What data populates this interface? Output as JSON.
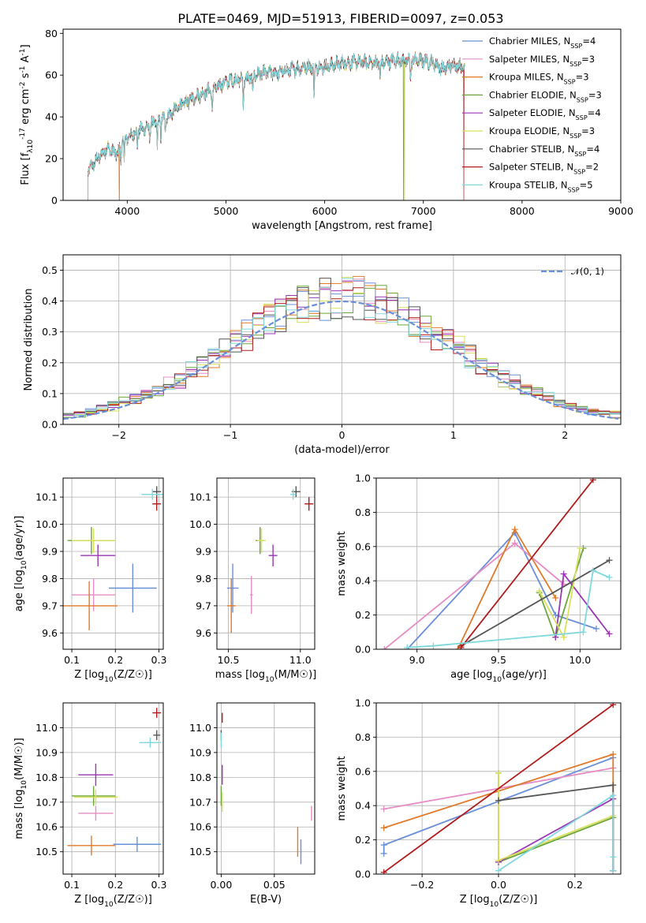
{
  "figure": {
    "title": "PLATE=0469, MJD=51913, FIBERID=0097, z=0.053"
  },
  "colors": {
    "Chabrier MILES": "#6a8fd8",
    "Salpeter MILES": "#e68dc4",
    "Kroupa MILES": "#e07a28",
    "Chabrier ELODIE": "#6ca63a",
    "Salpeter ELODIE": "#9b35b8",
    "Kroupa ELODIE": "#d9e05a",
    "Chabrier STELIB": "#555555",
    "Salpeter STELIB": "#b01c1c",
    "Kroupa STELIB": "#7fd8dc"
  },
  "chart_data": [
    {
      "id": "spectrum",
      "type": "line",
      "xlabel": "wavelength [Angstrom, rest frame]",
      "ylabel": "Flux [f_λ10^-17 erg cm^-2 s^-1 A^-1]",
      "xlim": [
        3350,
        9000
      ],
      "ylim": [
        0,
        82
      ],
      "xticks": [
        4000,
        5000,
        6000,
        7000,
        8000,
        9000
      ],
      "yticks": [
        0,
        20,
        40,
        60,
        80
      ],
      "grid": false,
      "legend_position": "right",
      "x_range_data": [
        3600,
        7420
      ],
      "legend": [
        {
          "name": "Chabrier MILES, N_SSP=4",
          "model": "Chabrier MILES"
        },
        {
          "name": "Salpeter MILES, N_SSP=3",
          "model": "Salpeter MILES"
        },
        {
          "name": "Kroupa MILES, N_SSP=3",
          "model": "Kroupa MILES"
        },
        {
          "name": "Chabrier ELODIE, N_SSP=3",
          "model": "Chabrier ELODIE"
        },
        {
          "name": "Salpeter ELODIE, N_SSP=4",
          "model": "Salpeter ELODIE"
        },
        {
          "name": "Kroupa ELODIE, N_SSP=3",
          "model": "Kroupa ELODIE"
        },
        {
          "name": "Chabrier STELIB, N_SSP=4",
          "model": "Chabrier STELIB"
        },
        {
          "name": "Salpeter STELIB, N_SSP=2",
          "model": "Salpeter STELIB"
        },
        {
          "name": "Kroupa STELIB, N_SSP=5",
          "model": "Kroupa STELIB"
        }
      ],
      "envelope": [
        [
          3600,
          14
        ],
        [
          3700,
          20
        ],
        [
          3800,
          25
        ],
        [
          3900,
          22
        ],
        [
          3950,
          28
        ],
        [
          4000,
          30
        ],
        [
          4100,
          33
        ],
        [
          4200,
          35
        ],
        [
          4300,
          38
        ],
        [
          4400,
          40
        ],
        [
          4500,
          44
        ],
        [
          4600,
          47
        ],
        [
          4700,
          50
        ],
        [
          4800,
          52
        ],
        [
          4900,
          54
        ],
        [
          5000,
          57
        ],
        [
          5100,
          58
        ],
        [
          5200,
          58
        ],
        [
          5300,
          60
        ],
        [
          5400,
          61
        ],
        [
          5500,
          61
        ],
        [
          5600,
          62
        ],
        [
          5700,
          63
        ],
        [
          5800,
          64
        ],
        [
          5900,
          64
        ],
        [
          6000,
          64
        ],
        [
          6100,
          65
        ],
        [
          6200,
          66
        ],
        [
          6300,
          66
        ],
        [
          6400,
          66
        ],
        [
          6500,
          66
        ],
        [
          6600,
          66
        ],
        [
          6700,
          67
        ],
        [
          6800,
          67
        ],
        [
          6900,
          67
        ],
        [
          7000,
          67
        ],
        [
          7100,
          66
        ],
        [
          7200,
          63
        ],
        [
          7300,
          65
        ],
        [
          7420,
          64
        ]
      ],
      "absorption": [
        [
          3934,
          18
        ],
        [
          3969,
          20
        ],
        [
          4101,
          26
        ],
        [
          4227,
          30
        ],
        [
          4304,
          25
        ],
        [
          4340,
          31
        ],
        [
          4384,
          35
        ],
        [
          4861,
          42
        ],
        [
          5175,
          46
        ],
        [
          5270,
          52
        ],
        [
          5893,
          50
        ],
        [
          6563,
          58
        ],
        [
          6870,
          58
        ]
      ],
      "dips_to_zero": [
        {
          "model": "Chabrier MILES",
          "x": 3600
        },
        {
          "model": "Kroupa MILES",
          "x": 3920
        },
        {
          "model": "Chabrier ELODIE",
          "x": 6800
        },
        {
          "model": "Kroupa ELODIE",
          "x": 6810
        },
        {
          "model": "Salpeter STELIB",
          "x": 7410
        }
      ]
    },
    {
      "id": "residuals",
      "type": "line",
      "xlabel": "(data-model)/error",
      "ylabel": "Normed distribution",
      "xlim": [
        -2.5,
        2.5
      ],
      "ylim": [
        0,
        0.55
      ],
      "xticks": [
        -2,
        -1,
        0,
        1,
        2
      ],
      "yticks": [
        0.0,
        0.1,
        0.2,
        0.3,
        0.4,
        0.5
      ],
      "grid": true,
      "legend_position": "top-right",
      "gaussian_label": "𝒩(0, 1)",
      "bin_width": 0.1,
      "models": [
        "Chabrier MILES",
        "Salpeter MILES",
        "Kroupa MILES",
        "Chabrier ELODIE",
        "Salpeter ELODIE",
        "Kroupa ELODIE",
        "Chabrier STELIB",
        "Salpeter STELIB",
        "Kroupa STELIB"
      ]
    },
    {
      "id": "age-vs-Z",
      "type": "scatter",
      "xlabel": "Z [log10(Z/Z☉)]",
      "ylabel": "age  [log10(age/yr)]",
      "xlim": [
        0.08,
        0.31
      ],
      "ylim": [
        9.54,
        10.17
      ],
      "xticks": [
        0.1,
        0.2,
        0.3
      ],
      "yticks": [
        9.6,
        9.7,
        9.8,
        9.9,
        10.0,
        10.1
      ],
      "grid": true,
      "points": [
        {
          "model": "Chabrier MILES",
          "x": 0.24,
          "y": 9.765,
          "xerr": 0.055,
          "yerr": 0.09
        },
        {
          "model": "Salpeter MILES",
          "x": 0.15,
          "y": 9.74,
          "xerr": 0.05,
          "yerr": 0.06
        },
        {
          "model": "Kroupa MILES",
          "x": 0.14,
          "y": 9.7,
          "xerr": 0.065,
          "yerr": 0.09
        },
        {
          "model": "Chabrier ELODIE",
          "x": 0.145,
          "y": 9.94,
          "xerr": 0.055,
          "yerr": 0.05
        },
        {
          "model": "Salpeter ELODIE",
          "x": 0.16,
          "y": 9.885,
          "xerr": 0.04,
          "yerr": 0.04
        },
        {
          "model": "Kroupa ELODIE",
          "x": 0.15,
          "y": 9.94,
          "xerr": 0.05,
          "yerr": 0.045
        },
        {
          "model": "Chabrier STELIB",
          "x": 0.295,
          "y": 10.12,
          "xerr": 0.01,
          "yerr": 0.02
        },
        {
          "model": "Salpeter STELIB",
          "x": 0.295,
          "y": 10.075,
          "xerr": 0.01,
          "yerr": 0.025
        },
        {
          "model": "Kroupa STELIB",
          "x": 0.285,
          "y": 10.11,
          "xerr": 0.025,
          "yerr": 0.02
        }
      ]
    },
    {
      "id": "age-vs-mass",
      "type": "scatter",
      "xlabel": "mass [log10(M/M☉)]",
      "ylabel": "",
      "xlim": [
        10.42,
        11.1
      ],
      "ylim": [
        9.54,
        10.17
      ],
      "xticks": [
        10.5,
        11.0
      ],
      "yticks": [
        9.6,
        9.7,
        9.8,
        9.9,
        10.0,
        10.1
      ],
      "grid": true,
      "points": [
        {
          "model": "Chabrier MILES",
          "x": 10.53,
          "y": 9.765,
          "xerr": 0.04,
          "yerr": 0.09
        },
        {
          "model": "Salpeter MILES",
          "x": 10.66,
          "y": 9.74,
          "xerr": 0.01,
          "yerr": 0.07
        },
        {
          "model": "Kroupa MILES",
          "x": 10.52,
          "y": 9.7,
          "xerr": 0.03,
          "yerr": 0.1
        },
        {
          "model": "Chabrier ELODIE",
          "x": 10.72,
          "y": 9.94,
          "xerr": 0.03,
          "yerr": 0.05
        },
        {
          "model": "Salpeter ELODIE",
          "x": 10.81,
          "y": 9.885,
          "xerr": 0.03,
          "yerr": 0.04
        },
        {
          "model": "Kroupa ELODIE",
          "x": 10.73,
          "y": 9.94,
          "xerr": 0.03,
          "yerr": 0.045
        },
        {
          "model": "Chabrier STELIB",
          "x": 10.97,
          "y": 10.12,
          "xerr": 0.03,
          "yerr": 0.02
        },
        {
          "model": "Salpeter STELIB",
          "x": 11.06,
          "y": 10.075,
          "xerr": 0.03,
          "yerr": 0.025
        },
        {
          "model": "Kroupa STELIB",
          "x": 10.95,
          "y": 10.11,
          "xerr": 0.02,
          "yerr": 0.02
        }
      ]
    },
    {
      "id": "weight-vs-age",
      "type": "line",
      "xlabel": "age  [log10(age/yr)]",
      "ylabel": "mass weight",
      "xlim": [
        8.75,
        10.25
      ],
      "ylim": [
        0,
        1.0
      ],
      "xticks": [
        9.0,
        9.5,
        10.0
      ],
      "yticks": [
        0.0,
        0.2,
        0.4,
        0.6,
        0.8,
        1.0
      ],
      "grid": true,
      "series": [
        {
          "model": "Chabrier MILES",
          "points": [
            [
              8.94,
              0.0
            ],
            [
              9.6,
              0.68
            ],
            [
              9.85,
              0.2
            ],
            [
              10.1,
              0.12
            ]
          ]
        },
        {
          "model": "Salpeter MILES",
          "points": [
            [
              8.8,
              0.0
            ],
            [
              9.6,
              0.62
            ],
            [
              9.9,
              0.38
            ]
          ]
        },
        {
          "model": "Kroupa MILES",
          "points": [
            [
              9.25,
              0.0
            ],
            [
              9.6,
              0.7
            ],
            [
              9.85,
              0.3
            ]
          ]
        },
        {
          "model": "Chabrier ELODIE",
          "points": [
            [
              9.75,
              0.33
            ],
            [
              9.85,
              0.07
            ],
            [
              10.02,
              0.59
            ]
          ]
        },
        {
          "model": "Salpeter ELODIE",
          "points": [
            [
              9.85,
              0.07
            ],
            [
              9.9,
              0.44
            ],
            [
              10.18,
              0.09
            ]
          ]
        },
        {
          "model": "Kroupa ELODIE",
          "points": [
            [
              9.75,
              0.34
            ],
            [
              9.9,
              0.07
            ],
            [
              10.0,
              0.59
            ]
          ]
        },
        {
          "model": "Chabrier STELIB",
          "points": [
            [
              9.27,
              0.02
            ],
            [
              10.18,
              0.52
            ]
          ]
        },
        {
          "model": "Salpeter STELIB",
          "points": [
            [
              9.27,
              0.01
            ],
            [
              10.08,
              0.99
            ]
          ]
        },
        {
          "model": "Kroupa STELIB",
          "points": [
            [
              8.94,
              0.01
            ],
            [
              9.1,
              0.02
            ],
            [
              10.02,
              0.1
            ],
            [
              10.08,
              0.46
            ],
            [
              10.18,
              0.42
            ]
          ]
        }
      ]
    },
    {
      "id": "mass-vs-Z",
      "type": "scatter",
      "xlabel": "Z [log10(Z/Z☉)]",
      "ylabel": "mass [log10(M/M☉)]",
      "xlim": [
        0.08,
        0.31
      ],
      "ylim": [
        10.41,
        11.1
      ],
      "xticks": [
        0.1,
        0.2,
        0.3
      ],
      "yticks": [
        10.5,
        10.6,
        10.7,
        10.8,
        10.9,
        11.0
      ],
      "grid": true,
      "points": [
        {
          "model": "Chabrier MILES",
          "x": 0.25,
          "y": 10.53,
          "xerr": 0.055,
          "yerr": 0.03
        },
        {
          "model": "Salpeter MILES",
          "x": 0.155,
          "y": 10.655,
          "xerr": 0.04,
          "yerr": 0.03
        },
        {
          "model": "Kroupa MILES",
          "x": 0.145,
          "y": 10.525,
          "xerr": 0.055,
          "yerr": 0.04
        },
        {
          "model": "Chabrier ELODIE",
          "x": 0.15,
          "y": 10.725,
          "xerr": 0.05,
          "yerr": 0.04
        },
        {
          "model": "Salpeter ELODIE",
          "x": 0.155,
          "y": 10.81,
          "xerr": 0.04,
          "yerr": 0.045
        },
        {
          "model": "Kroupa ELODIE",
          "x": 0.155,
          "y": 10.72,
          "xerr": 0.05,
          "yerr": 0.03
        },
        {
          "model": "Chabrier STELIB",
          "x": 0.295,
          "y": 10.97,
          "xerr": 0.008,
          "yerr": 0.02
        },
        {
          "model": "Salpeter STELIB",
          "x": 0.295,
          "y": 11.06,
          "xerr": 0.01,
          "yerr": 0.02
        },
        {
          "model": "Kroupa STELIB",
          "x": 0.28,
          "y": 10.94,
          "xerr": 0.025,
          "yerr": 0.02
        }
      ]
    },
    {
      "id": "mass-vs-EBV",
      "type": "scatter",
      "xlabel": "E(B-V)",
      "ylabel": "",
      "xlim": [
        -0.004,
        0.088
      ],
      "ylim": [
        10.41,
        11.1
      ],
      "xticks": [
        0.0,
        0.05
      ],
      "yticks": [
        10.5,
        10.6,
        10.7,
        10.8,
        10.9,
        11.0
      ],
      "grid": true,
      "points": [
        {
          "model": "Chabrier MILES",
          "x": 0.075,
          "y": 10.5,
          "xerr": 0.0,
          "yerr": 0.05
        },
        {
          "model": "Salpeter MILES",
          "x": 0.085,
          "y": 10.655,
          "xerr": 0.0,
          "yerr": 0.03
        },
        {
          "model": "Kroupa MILES",
          "x": 0.072,
          "y": 10.54,
          "xerr": 0.0,
          "yerr": 0.06
        },
        {
          "model": "Chabrier ELODIE",
          "x": 0.0,
          "y": 10.725,
          "xerr": 0.0,
          "yerr": 0.04
        },
        {
          "model": "Salpeter ELODIE",
          "x": 0.001,
          "y": 10.81,
          "xerr": 0.0,
          "yerr": 0.04
        },
        {
          "model": "Kroupa ELODIE",
          "x": 0.001,
          "y": 10.7,
          "xerr": 0.0,
          "yerr": 0.04
        },
        {
          "model": "Chabrier STELIB",
          "x": 0.0,
          "y": 10.97,
          "xerr": 0.0,
          "yerr": 0.02
        },
        {
          "model": "Salpeter STELIB",
          "x": 0.001,
          "y": 11.04,
          "xerr": 0.0,
          "yerr": 0.02
        },
        {
          "model": "Kroupa STELIB",
          "x": 0.0,
          "y": 10.95,
          "xerr": 0.0,
          "yerr": 0.03
        }
      ]
    },
    {
      "id": "weight-vs-Z",
      "type": "line",
      "xlabel": "Z [log10(Z/Z☉)]",
      "ylabel": "mass weight",
      "xlim": [
        -0.32,
        0.32
      ],
      "ylim": [
        0,
        1.0
      ],
      "xticks": [
        -0.2,
        0.0,
        0.2
      ],
      "yticks": [
        0.0,
        0.2,
        0.4,
        0.6,
        0.8,
        1.0
      ],
      "grid": true,
      "series": [
        {
          "model": "Chabrier MILES",
          "points": [
            [
              -0.3,
              0.12
            ],
            [
              -0.3,
              0.17
            ],
            [
              0.3,
              0.68
            ]
          ]
        },
        {
          "model": "Salpeter MILES",
          "points": [
            [
              -0.3,
              0.38
            ],
            [
              0.3,
              0.62
            ]
          ]
        },
        {
          "model": "Kroupa MILES",
          "points": [
            [
              -0.3,
              0.27
            ],
            [
              0.3,
              0.7
            ],
            [
              0.3,
              0.02
            ]
          ]
        },
        {
          "model": "Chabrier ELODIE",
          "points": [
            [
              0.0,
              0.59
            ],
            [
              0.0,
              0.07
            ],
            [
              0.3,
              0.33
            ]
          ]
        },
        {
          "model": "Salpeter ELODIE",
          "points": [
            [
              0.0,
              0.07
            ],
            [
              0.3,
              0.44
            ],
            [
              0.3,
              0.02
            ]
          ]
        },
        {
          "model": "Kroupa ELODIE",
          "points": [
            [
              0.0,
              0.59
            ],
            [
              0.0,
              0.08
            ],
            [
              0.3,
              0.34
            ]
          ]
        },
        {
          "model": "Chabrier STELIB",
          "points": [
            [
              0.0,
              0.43
            ],
            [
              0.3,
              0.52
            ],
            [
              0.3,
              0.02
            ]
          ]
        },
        {
          "model": "Salpeter STELIB",
          "points": [
            [
              -0.3,
              0.01
            ],
            [
              0.3,
              0.99
            ]
          ]
        },
        {
          "model": "Kroupa STELIB",
          "points": [
            [
              0.0,
              0.02
            ],
            [
              0.3,
              0.46
            ],
            [
              0.3,
              0.1
            ],
            [
              0.3,
              0.02
            ]
          ]
        }
      ]
    }
  ]
}
